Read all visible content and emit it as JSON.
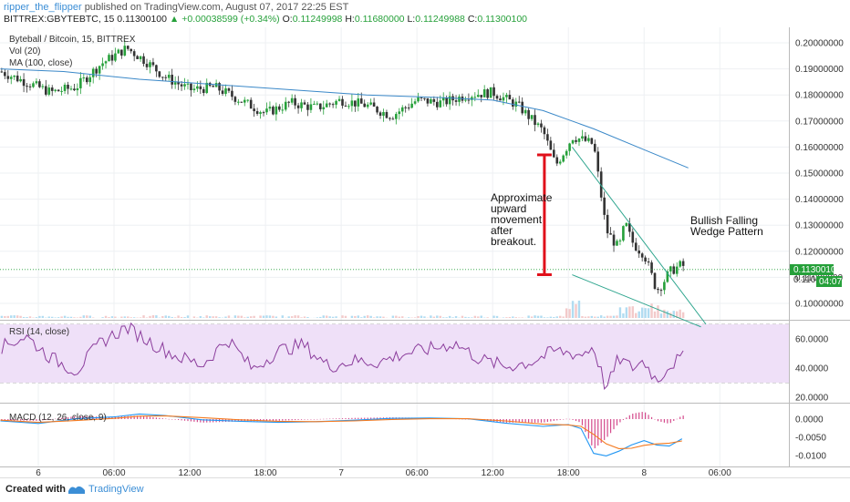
{
  "header": {
    "author": "ripper_the_flipper",
    "published": "published on TradingView.com, August 07, 2017 22:25 EST",
    "symbol": "BITTREX:GBYTEBTC, 15",
    "last": "0.11300100",
    "change": "+0.00038599 (+0.34%)",
    "o_label": "O:",
    "o": "0.11249998",
    "h_label": "H:",
    "h": "0.11680000",
    "l_label": "L:",
    "l": "0.11249988",
    "c_label": "C:",
    "c": "0.11300100"
  },
  "legend": {
    "title": "Byteball / Bitcoin, 15, BITTREX",
    "vol": "Vol (20)",
    "ma": "MA (100, close)"
  },
  "annotations": {
    "approx": [
      "Approximate",
      "upward",
      "movement",
      "after",
      "breakout."
    ],
    "wedge": [
      "Bullish Falling",
      "Wedge Pattern"
    ]
  },
  "price_tag": {
    "value": "0.11300100",
    "timer": "04:07",
    "other": "0.110"
  },
  "footer": {
    "created": "Created with",
    "brand": "TradingView"
  },
  "colors": {
    "up": "#26a03a",
    "down": "#333333",
    "ma": "#3a88c8",
    "wedge": "#2ea58e",
    "arrow": "#e0101a",
    "rsi": "#8b3d9c",
    "macd": "#2196f3",
    "signal": "#f47a20"
  },
  "chart_data": [
    {
      "type": "line",
      "title": "Byteball / Bitcoin, 15, BITTREX",
      "ylim": [
        0.09,
        0.205
      ],
      "y_ticks": [
        "0.20000000",
        "0.19000000",
        "0.18000000",
        "0.17000000",
        "0.16000000",
        "0.15000000",
        "0.14000000",
        "0.13000000",
        "0.12000000",
        "0.11000000",
        "0.10000000"
      ],
      "x_ticks": [
        "6",
        "06:00",
        "12:00",
        "18:00",
        "7",
        "06:00",
        "12:00",
        "18:00",
        "8",
        "06:00"
      ],
      "x_tick_hours": [
        0,
        6,
        12,
        18,
        24,
        30,
        36,
        42,
        48,
        54
      ],
      "series": [
        {
          "name": "Byteball / Bitcoin",
          "x": [
            -3,
            1,
            3,
            5,
            7,
            8.5,
            10,
            12,
            14,
            16,
            18,
            20,
            22,
            24,
            26,
            28,
            30,
            32,
            34,
            36,
            38,
            40,
            41,
            42,
            42.3,
            43,
            44,
            45,
            46,
            46.5,
            47,
            47.5,
            48,
            48.5,
            49,
            49.5,
            50,
            51,
            51.3
          ],
          "y": [
            0.189,
            0.181,
            0.183,
            0.192,
            0.198,
            0.193,
            0.187,
            0.182,
            0.183,
            0.178,
            0.173,
            0.177,
            0.175,
            0.178,
            0.176,
            0.172,
            0.178,
            0.177,
            0.18,
            0.181,
            0.176,
            0.166,
            0.153,
            0.161,
            0.164,
            0.163,
            0.161,
            0.128,
            0.121,
            0.131,
            0.124,
            0.121,
            0.119,
            0.112,
            0.105,
            0.108,
            0.112,
            0.115,
            0.113
          ]
        },
        {
          "name": "MA (100, close)",
          "x": [
            -3,
            2,
            8,
            14,
            20,
            26,
            32,
            36,
            40,
            44,
            48,
            51.5
          ],
          "y": [
            0.19,
            0.189,
            0.186,
            0.184,
            0.182,
            0.18,
            0.179,
            0.178,
            0.174,
            0.167,
            0.159,
            0.152
          ]
        }
      ],
      "volume": {
        "name": "Vol (20)",
        "note": "low volume with spikes near 18:00 on the 7th and around the 8th"
      }
    },
    {
      "type": "line",
      "title": "RSI (14, close)",
      "ylim": [
        15,
        75
      ],
      "y_ticks": [
        "60.0000",
        "40.0000",
        "20.0000"
      ],
      "bands": [
        30,
        70
      ],
      "series": [
        {
          "name": "RSI (14, close)",
          "x": [
            -3,
            -1,
            1,
            3,
            5,
            7,
            9,
            11,
            13,
            15,
            17,
            19,
            21,
            23,
            25,
            27,
            29,
            31,
            33,
            35,
            37,
            39,
            41,
            43,
            44,
            45,
            46,
            47,
            48,
            49,
            50,
            51
          ],
          "y": [
            54,
            62,
            47,
            38,
            58,
            68,
            57,
            48,
            42,
            60,
            39,
            52,
            56,
            41,
            45,
            44,
            50,
            53,
            57,
            46,
            41,
            44,
            52,
            49,
            55,
            25,
            47,
            40,
            45,
            31,
            42,
            47
          ]
        }
      ]
    },
    {
      "type": "line",
      "title": "MACD (12, 26, close, 9)",
      "ylim": [
        -0.0125,
        0.0025
      ],
      "y_ticks": [
        "0.0000",
        "-0.0050",
        "-0.0100"
      ],
      "series": [
        {
          "name": "MACD",
          "x": [
            -3,
            0,
            3,
            6,
            8,
            10,
            13,
            16,
            19,
            22,
            25,
            28,
            31,
            34,
            37,
            40,
            42,
            43,
            44,
            45,
            46,
            47,
            48,
            49,
            50,
            51
          ],
          "y": [
            -0.0005,
            -0.0012,
            0.0001,
            0.0006,
            0.0014,
            0.001,
            -0.0002,
            -0.0006,
            -0.0009,
            -0.0007,
            -0.0003,
            0.0002,
            0.0003,
            0.0001,
            -0.0011,
            -0.002,
            -0.0015,
            -0.0026,
            -0.0094,
            -0.0101,
            -0.0088,
            -0.0071,
            -0.0059,
            -0.0071,
            -0.0074,
            -0.0054
          ]
        },
        {
          "name": "Signal",
          "x": [
            -3,
            0,
            3,
            6,
            8,
            10,
            13,
            16,
            19,
            22,
            25,
            28,
            31,
            34,
            37,
            40,
            42,
            43,
            44,
            45,
            46,
            47,
            48,
            49,
            50,
            51
          ],
          "y": [
            -0.0003,
            -0.0009,
            -0.0004,
            0.0002,
            0.0008,
            0.0009,
            0.0004,
            -0.0002,
            -0.0006,
            -0.0007,
            -0.0005,
            -0.0001,
            0.0001,
            0.0001,
            -0.0005,
            -0.0014,
            -0.0016,
            -0.002,
            -0.0042,
            -0.0068,
            -0.0081,
            -0.008,
            -0.0072,
            -0.0068,
            -0.0066,
            -0.006
          ]
        }
      ]
    }
  ]
}
